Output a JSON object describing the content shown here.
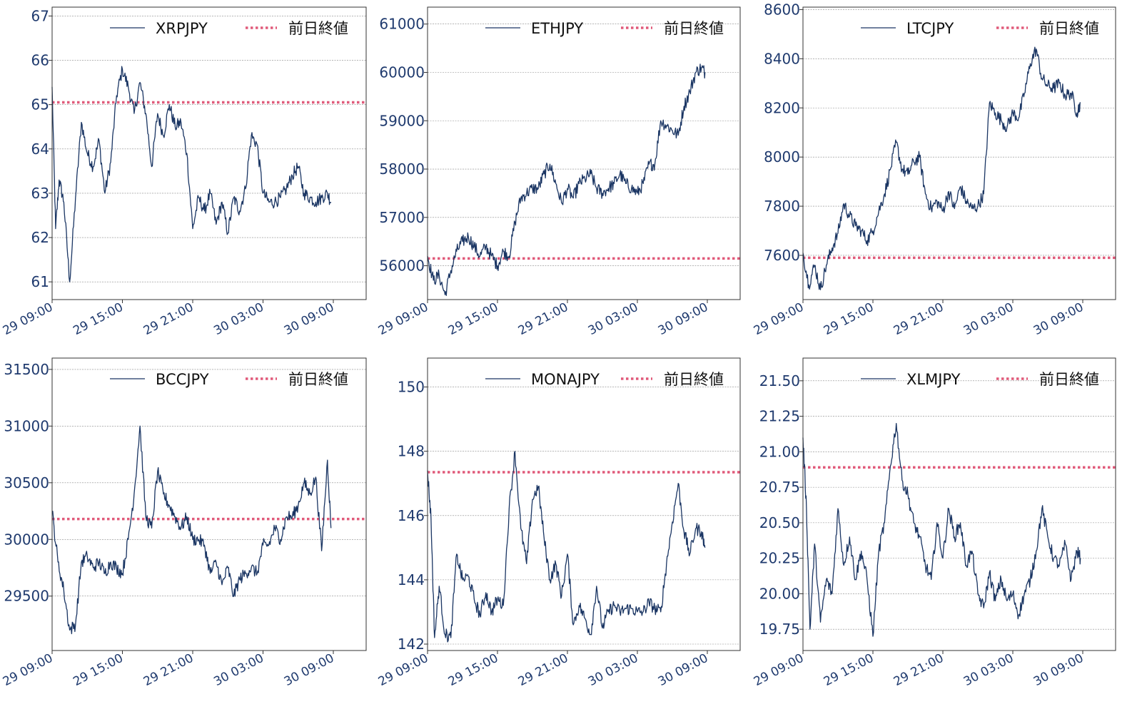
{
  "colors": {
    "series": "#1a3563",
    "reference": "#e05a7a",
    "grid": "#888888",
    "tick": "#1f3a6e",
    "frame": "#333333"
  },
  "xtick_labels": [
    "29 09:00",
    "29 15:00",
    "29 21:00",
    "30 03:00",
    "30 09:00"
  ],
  "chart_data": [
    {
      "type": "line",
      "series_name": "XRPJPY",
      "reference_name": "前日終値",
      "reference_value": 65.05,
      "ylim": [
        60.6,
        67.2
      ],
      "yticks": [
        61,
        62,
        63,
        64,
        65,
        66,
        67
      ],
      "ytick_labels": [
        "61",
        "62",
        "63",
        "64",
        "65",
        "66",
        "67"
      ],
      "x_hours": [
        0,
        0.3,
        0.6,
        1,
        1.5,
        2,
        2.5,
        3,
        3.5,
        4,
        4.5,
        5,
        5.5,
        6,
        6.5,
        7,
        7.5,
        8,
        8.5,
        9,
        9.5,
        10,
        10.5,
        11,
        11.5,
        12,
        12.5,
        13,
        13.5,
        14,
        14.5,
        15,
        15.5,
        16,
        16.5,
        17,
        17.5,
        18,
        18.5,
        19,
        19.5,
        20,
        20.5,
        21,
        21.5,
        22,
        22.5,
        23,
        23.5,
        23.8
      ],
      "values": [
        65.4,
        62.2,
        63.3,
        62.8,
        61.0,
        62.9,
        64.6,
        63.9,
        63.6,
        64.2,
        63.0,
        63.7,
        65.2,
        65.8,
        65.4,
        64.8,
        65.5,
        64.8,
        63.6,
        64.8,
        64.3,
        65.0,
        64.5,
        64.6,
        63.9,
        62.2,
        62.9,
        62.6,
        63.0,
        62.3,
        62.8,
        62.1,
        62.9,
        62.6,
        63.1,
        64.3,
        64.1,
        63.0,
        62.8,
        62.8,
        62.9,
        63.1,
        63.4,
        63.6,
        63.0,
        62.9,
        62.8,
        62.9,
        63.0,
        62.8
      ]
    },
    {
      "type": "line",
      "series_name": "ETHJPY",
      "reference_name": "前日終値",
      "reference_value": 56150,
      "ylim": [
        55300,
        61350
      ],
      "yticks": [
        56000,
        57000,
        58000,
        59000,
        60000,
        61000
      ],
      "ytick_labels": [
        "56000",
        "57000",
        "58000",
        "59000",
        "60000",
        "61000"
      ],
      "x_hours": [
        0,
        0.5,
        1,
        1.5,
        2,
        2.5,
        3,
        3.5,
        4,
        4.5,
        5,
        5.5,
        6,
        6.5,
        7,
        7.5,
        8,
        8.5,
        9,
        9.5,
        10,
        10.5,
        11,
        11.5,
        12,
        12.5,
        13,
        13.5,
        14,
        14.5,
        15,
        15.5,
        16,
        16.5,
        17,
        17.5,
        18,
        18.5,
        19,
        19.5,
        20,
        20.5,
        21,
        21.5,
        22,
        22.5,
        23,
        23.5,
        23.8
      ],
      "values": [
        56200,
        55700,
        55800,
        55400,
        55900,
        56300,
        56500,
        56600,
        56400,
        56200,
        56400,
        56200,
        56000,
        56300,
        56200,
        56900,
        57400,
        57500,
        57600,
        57600,
        57900,
        58100,
        57700,
        57300,
        57600,
        57400,
        57700,
        57800,
        57900,
        57600,
        57500,
        57600,
        57700,
        57900,
        57700,
        57600,
        57500,
        57700,
        58100,
        58100,
        59000,
        58900,
        58800,
        58700,
        59300,
        59600,
        60000,
        60100,
        60000
      ]
    },
    {
      "type": "line",
      "series_name": "LTCJPY",
      "reference_name": "前日終値",
      "reference_value": 7590,
      "ylim": [
        7420,
        8610
      ],
      "yticks": [
        7600,
        7800,
        8000,
        8200,
        8400,
        8600
      ],
      "ytick_labels": [
        "7600",
        "7800",
        "8000",
        "8200",
        "8400",
        "8600"
      ],
      "x_hours": [
        0,
        0.5,
        1,
        1.5,
        2,
        2.5,
        3,
        3.5,
        4,
        4.5,
        5,
        5.5,
        6,
        6.5,
        7,
        7.5,
        8,
        8.5,
        9,
        9.5,
        10,
        10.5,
        11,
        11.5,
        12,
        12.5,
        13,
        13.5,
        14,
        14.5,
        15,
        15.5,
        16,
        16.5,
        17,
        17.5,
        18,
        18.5,
        19,
        19.5,
        20,
        20.5,
        21,
        21.5,
        22,
        22.5,
        23,
        23.5,
        23.8
      ],
      "values": [
        7610,
        7480,
        7560,
        7460,
        7560,
        7630,
        7690,
        7810,
        7760,
        7720,
        7700,
        7660,
        7700,
        7780,
        7850,
        7950,
        8060,
        7950,
        7930,
        7980,
        8000,
        7850,
        7790,
        7820,
        7780,
        7860,
        7790,
        7880,
        7820,
        7790,
        7800,
        7850,
        8220,
        8180,
        8150,
        8120,
        8180,
        8160,
        8260,
        8380,
        8440,
        8320,
        8290,
        8280,
        8300,
        8250,
        8260,
        8180,
        8220
      ]
    },
    {
      "type": "line",
      "series_name": "BCCJPY",
      "reference_name": "前日終値",
      "reference_value": 30180,
      "ylim": [
        29020,
        31600
      ],
      "yticks": [
        29500,
        30000,
        30500,
        31000,
        31500
      ],
      "ytick_labels": [
        "29500",
        "30000",
        "30500",
        "31000",
        "31500"
      ],
      "x_hours": [
        0,
        0.5,
        1,
        1.5,
        2,
        2.5,
        3,
        3.5,
        4,
        4.5,
        5,
        5.5,
        6,
        6.5,
        7,
        7.5,
        8,
        8.5,
        9,
        9.5,
        10,
        10.5,
        11,
        11.5,
        12,
        12.5,
        13,
        13.5,
        14,
        14.5,
        15,
        15.5,
        16,
        16.5,
        17,
        17.5,
        18,
        18.5,
        19,
        19.5,
        20,
        20.5,
        21,
        21.5,
        22,
        22.5,
        23,
        23.5,
        23.8
      ],
      "values": [
        30250,
        29800,
        29550,
        29200,
        29250,
        29800,
        29850,
        29750,
        29800,
        29700,
        29800,
        29750,
        29700,
        30000,
        30400,
        31000,
        30200,
        30100,
        30600,
        30400,
        30300,
        30200,
        30100,
        30200,
        30000,
        30000,
        29950,
        29700,
        29800,
        29600,
        29750,
        29500,
        29650,
        29700,
        29750,
        29700,
        29950,
        29950,
        30100,
        30000,
        30200,
        30200,
        30300,
        30500,
        30400,
        30550,
        29900,
        30700,
        30100
      ]
    },
    {
      "type": "line",
      "series_name": "MONAJPY",
      "reference_name": "前日終値",
      "reference_value": 147.35,
      "ylim": [
        141.8,
        150.9
      ],
      "yticks": [
        142,
        144,
        146,
        148,
        150
      ],
      "ytick_labels": [
        "142",
        "144",
        "146",
        "148",
        "150"
      ],
      "x_hours": [
        0,
        0.3,
        0.6,
        1,
        1.5,
        2,
        2.5,
        3,
        3.5,
        4,
        4.5,
        5,
        5.5,
        6,
        6.5,
        7,
        7.5,
        8,
        8.5,
        9,
        9.5,
        10,
        10.5,
        11,
        11.5,
        12,
        12.5,
        13,
        13.5,
        14,
        14.5,
        15,
        15.5,
        16,
        16.5,
        17,
        17.5,
        18,
        18.5,
        19,
        19.5,
        20,
        20.5,
        21,
        21.5,
        22,
        22.5,
        23,
        23.5,
        23.8
      ],
      "values": [
        147.4,
        145.9,
        142.2,
        143.8,
        142.3,
        142.2,
        144.8,
        144.0,
        144.1,
        143.4,
        142.9,
        143.6,
        143.0,
        143.4,
        143.2,
        146.2,
        148.0,
        145.6,
        144.5,
        146.5,
        146.9,
        145.3,
        144.0,
        144.5,
        143.5,
        144.8,
        142.6,
        143.2,
        142.8,
        142.3,
        143.8,
        142.5,
        143.0,
        143.2,
        143.0,
        143.1,
        143.1,
        143.0,
        143.0,
        143.3,
        143.1,
        143.0,
        144.5,
        145.8,
        147.0,
        145.5,
        144.8,
        145.6,
        145.5,
        145.0
      ]
    },
    {
      "type": "line",
      "series_name": "XLMJPY",
      "reference_name": "前日終値",
      "reference_value": 20.89,
      "ylim": [
        19.6,
        21.66
      ],
      "yticks": [
        19.75,
        20.0,
        20.25,
        20.5,
        20.75,
        21.0,
        21.25,
        21.5
      ],
      "ytick_labels": [
        "19.75",
        "20.00",
        "20.25",
        "20.50",
        "20.75",
        "21.00",
        "21.25",
        "21.50"
      ],
      "x_hours": [
        0,
        0.3,
        0.6,
        1,
        1.5,
        2,
        2.5,
        3,
        3.5,
        4,
        4.5,
        5,
        5.5,
        6,
        6.5,
        7,
        7.5,
        8,
        8.5,
        9,
        9.5,
        10,
        10.5,
        11,
        11.5,
        12,
        12.5,
        13,
        13.5,
        14,
        14.5,
        15,
        15.5,
        16,
        16.5,
        17,
        17.5,
        18,
        18.5,
        19,
        19.5,
        20,
        20.5,
        21,
        21.5,
        22,
        22.5,
        23,
        23.5,
        23.8
      ],
      "values": [
        21.1,
        20.6,
        19.75,
        20.35,
        19.8,
        20.1,
        20.0,
        20.6,
        20.2,
        20.4,
        20.1,
        20.3,
        20.1,
        19.7,
        20.3,
        20.5,
        20.9,
        21.2,
        20.8,
        20.7,
        20.5,
        20.4,
        20.2,
        20.1,
        20.5,
        20.25,
        20.6,
        20.4,
        20.5,
        20.2,
        20.3,
        20.0,
        19.9,
        20.15,
        19.95,
        20.1,
        19.95,
        20.0,
        19.85,
        20.0,
        20.1,
        20.3,
        20.6,
        20.4,
        20.25,
        20.2,
        20.35,
        20.1,
        20.3,
        20.25
      ]
    }
  ]
}
